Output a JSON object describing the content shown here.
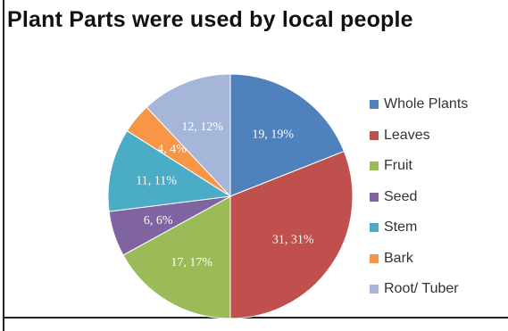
{
  "chart_data": {
    "type": "pie",
    "title": "Plant Parts were used by local people",
    "categories": [
      "Whole Plants",
      "Leaves",
      "Fruit",
      "Seed",
      "Stem",
      "Bark",
      "Root/ Tuber"
    ],
    "values": [
      19,
      31,
      17,
      6,
      11,
      4,
      12
    ],
    "data_labels": [
      "19, 19%",
      "31, 31%",
      "17, 17%",
      "6, 6%",
      "11, 11%",
      "4, 4%",
      "12, 12%"
    ],
    "colors": [
      "#4f81bd",
      "#c0504d",
      "#9bbb59",
      "#8064a2",
      "#4bacc6",
      "#f79646",
      "#a5b6d9"
    ],
    "legend_position": "right"
  }
}
